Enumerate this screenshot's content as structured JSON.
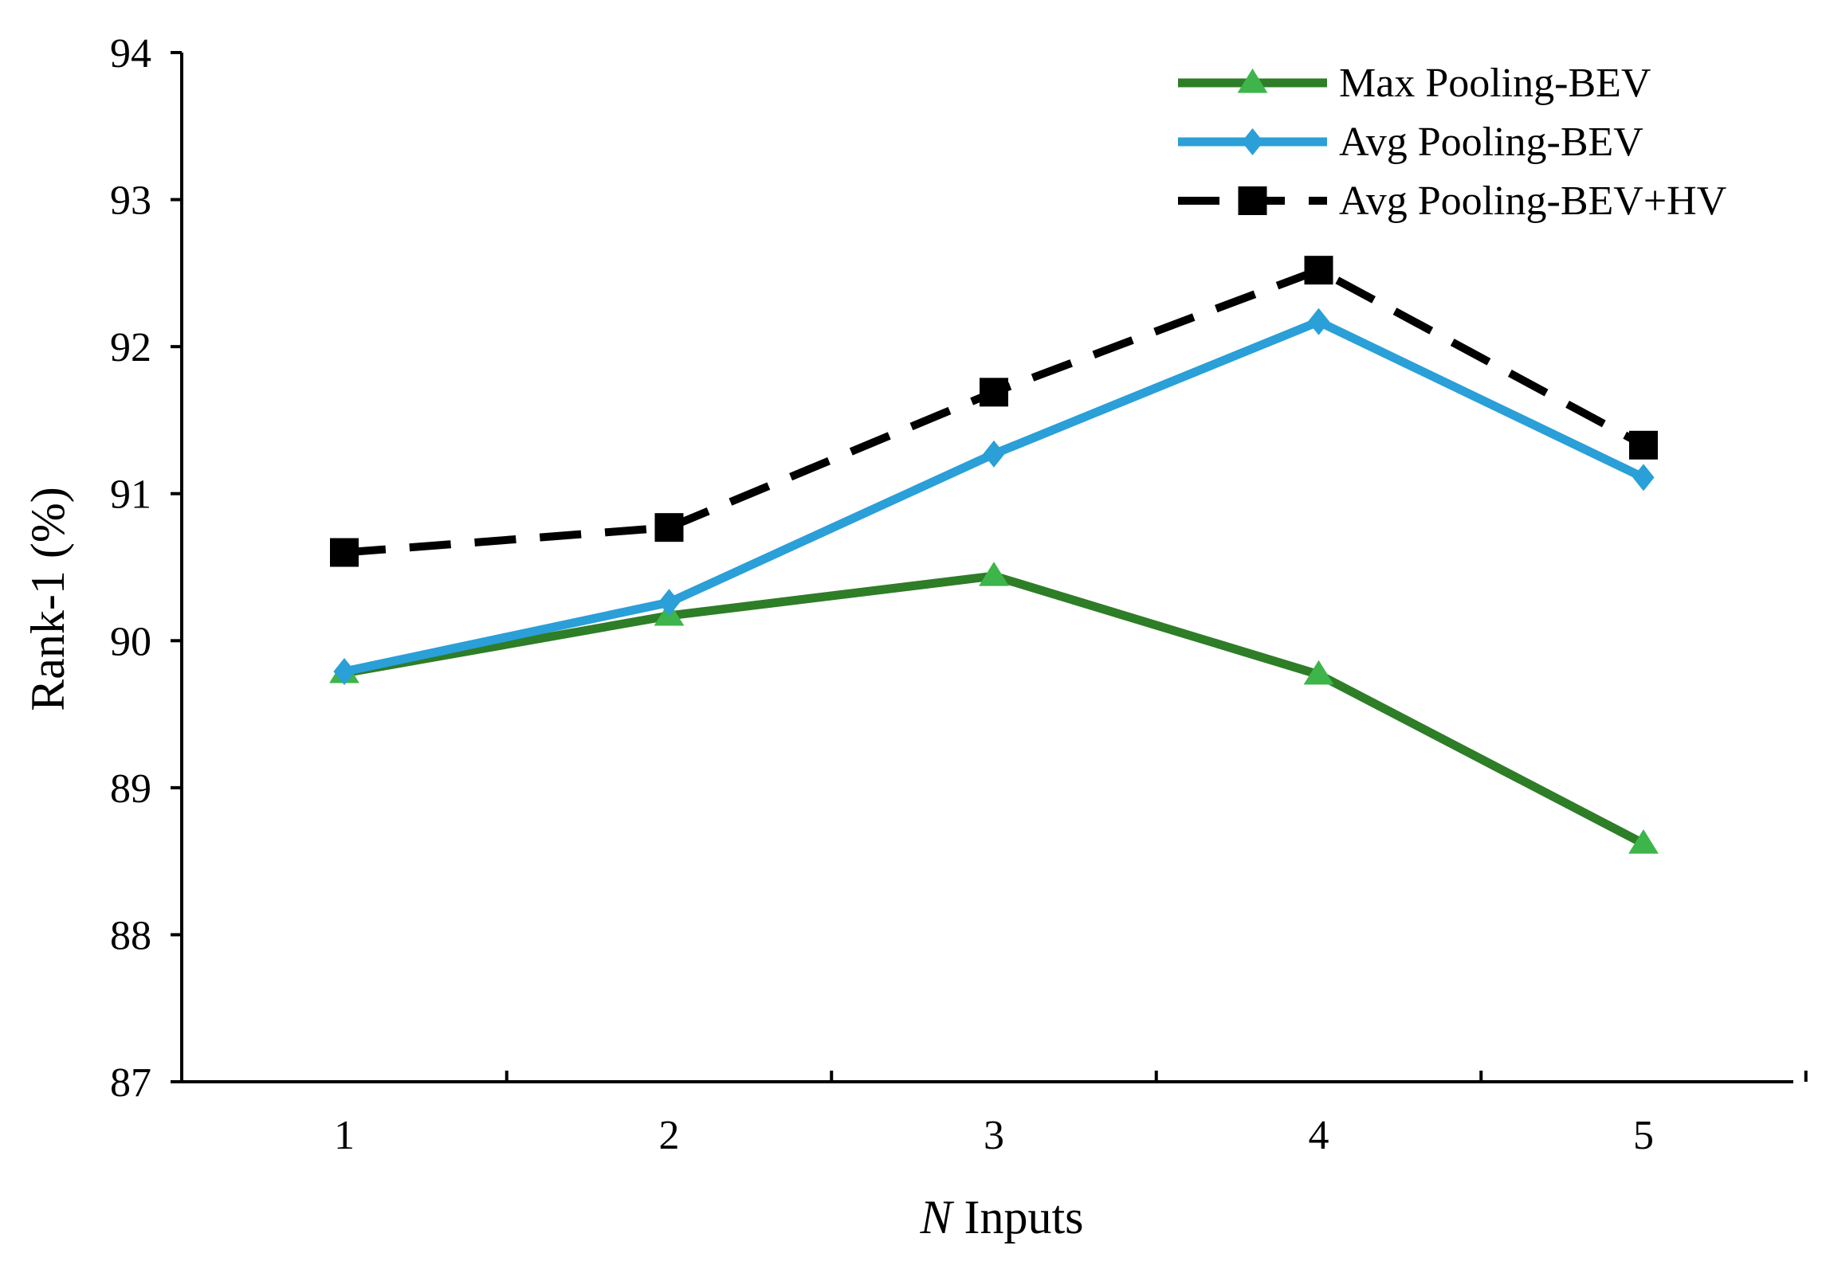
{
  "chart_data": {
    "type": "line",
    "title": "",
    "xlabel_italic": "N",
    "xlabel_rest": " Inputs",
    "ylabel": "Rank-1 (%)",
    "x": [
      1,
      2,
      3,
      4,
      5
    ],
    "x_tick_labels": [
      "1",
      "2",
      "3",
      "4",
      "5"
    ],
    "ylim": [
      87,
      94
    ],
    "y_ticks": [
      87,
      88,
      89,
      90,
      91,
      92,
      93,
      94
    ],
    "y_tick_labels": [
      "87",
      "88",
      "89",
      "90",
      "91",
      "92",
      "93",
      "94"
    ],
    "grid": false,
    "legend_position": "top-right",
    "series": [
      {
        "name": "Max Pooling-BEV",
        "values": [
          89.78,
          90.17,
          90.44,
          89.77,
          88.62
        ],
        "color": "#2e7d27",
        "marker_color": "#3db54a",
        "marker": "triangle",
        "dash": false
      },
      {
        "name": "Avg Pooling-BEV",
        "values": [
          89.79,
          90.26,
          91.27,
          92.17,
          91.11
        ],
        "color": "#2a9fd8",
        "marker_color": "#2a9fd8",
        "marker": "diamond",
        "dash": false
      },
      {
        "name": "Avg Pooling-BEV+HV",
        "values": [
          90.6,
          90.77,
          91.69,
          92.52,
          91.33
        ],
        "color": "#000000",
        "marker_color": "#000000",
        "marker": "square",
        "dash": true
      }
    ]
  }
}
